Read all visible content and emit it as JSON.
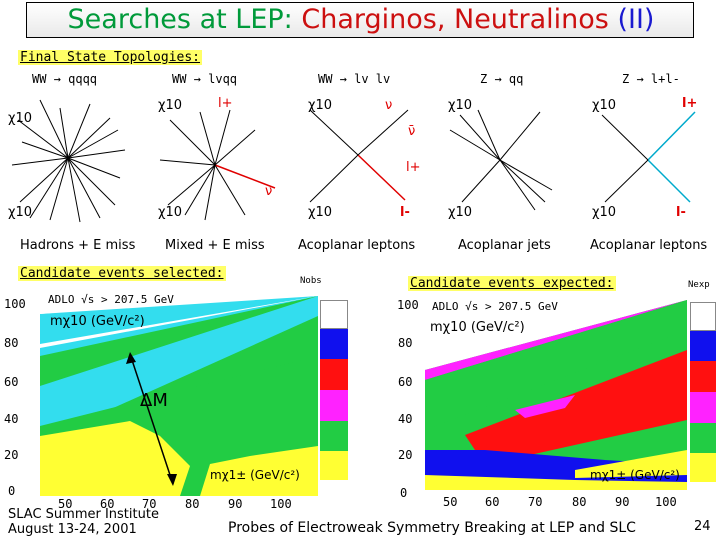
{
  "title": {
    "part1": "Searches at LEP: ",
    "part2": "Charginos, Neutralinos",
    "part3": " (II)"
  },
  "topology_heading": "Final State Topologies:",
  "processes": [
    "WW → qqqq",
    "WW → lvqq",
    "WW → lv lv",
    "Z → qq",
    "Z → l+l-"
  ],
  "particles": {
    "chi": "χ10",
    "l_plus": "l+",
    "l_minus": "l-",
    "nu": "ν",
    "nubar": "ν̄"
  },
  "captions": [
    "Hadrons + E miss",
    "Mixed + E miss",
    "Acoplanar leptons",
    "Acoplanar jets",
    "Acoplanar leptons"
  ],
  "selected_heading": "Candidate events selected:",
  "expected_heading": "Candidate events expected:",
  "plot_left": {
    "header": "ADLO   √s > 207.5 GeV",
    "ylabel": "mχ10 (GeV/c²)",
    "xlabel": "mχ1± (GeV/c²)",
    "legend_label": "Nobs",
    "y_ticks": [
      "100",
      "80",
      "60",
      "40",
      "20",
      "0"
    ],
    "x_ticks": [
      "50",
      "60",
      "70",
      "80",
      "90",
      "100"
    ],
    "annotation": "ΔM"
  },
  "plot_right": {
    "header": "ADLO   √s > 207.5 GeV",
    "ylabel": "mχ10 (GeV/c²)",
    "xlabel": "mχ1± (GeV/c²)",
    "legend_label": "Nexp",
    "y_ticks": [
      "100",
      "80",
      "60",
      "40",
      "20",
      "0"
    ],
    "x_ticks": [
      "50",
      "60",
      "70",
      "80",
      "90",
      "100"
    ]
  },
  "footer": {
    "institute": "SLAC Summer Institute",
    "dates": "August 13-24, 2001",
    "talk": "Probes of Electroweak Symmetry Breaking at LEP and SLC",
    "page": "24"
  },
  "colors": {
    "green": "#22cc44",
    "cyan": "#33ddee",
    "yellow": "#ffff33",
    "red": "#ff1010",
    "blue": "#1010ee",
    "magenta": "#ff22ff",
    "title_red": "#cc1010",
    "title_green": "#009a3a"
  }
}
